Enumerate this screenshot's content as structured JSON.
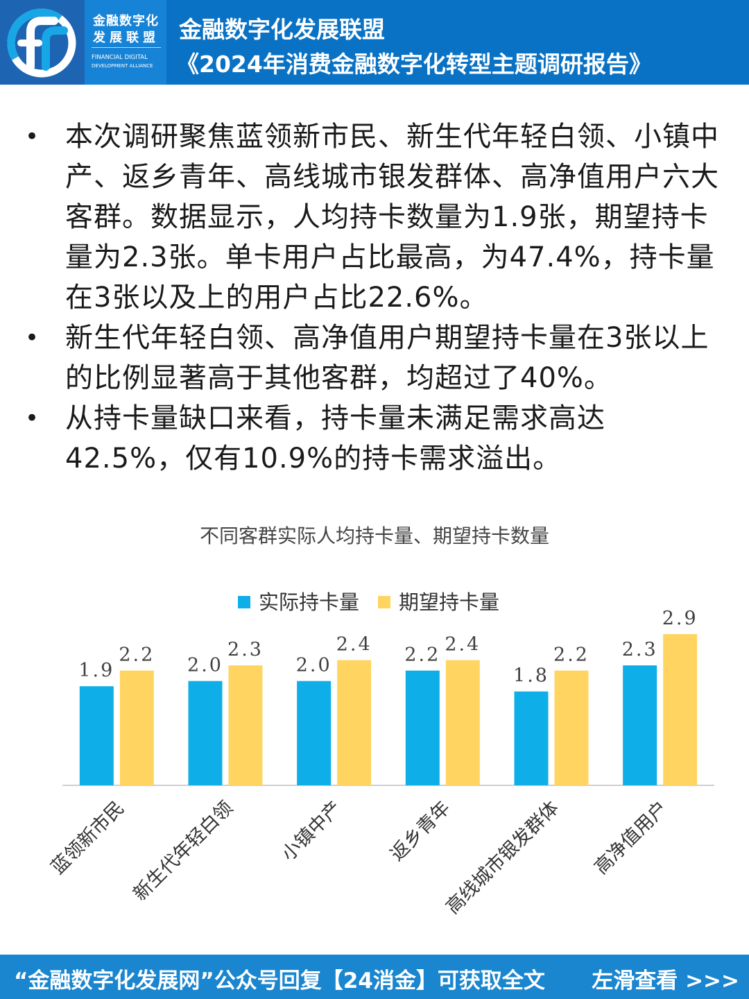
{
  "header": {
    "logo_cn_line1": "金融数字化",
    "logo_cn_line2": "发展联盟",
    "logo_en_line1": "FINANCIAL DIGITAL",
    "logo_en_line2": "DEVELOPMENT ALLIANCE",
    "title_line1": "金融数字化发展联盟",
    "title_line2": "《2024年消费金融数字化转型主题调研报告》"
  },
  "bullets": [
    "本次调研聚焦蓝领新市民、新生代年轻白领、小镇中产、返乡青年、高线城市银发群体、高净值用户六大客群。数据显示，人均持卡数量为1.9张，期望持卡量为2.3张。单卡用户占比最高，为47.4%，持卡量在3张以及上的用户占比22.6%。",
    "新生代年轻白领、高净值用户期望持卡量在3张以上的比例显著高于其他客群，均超过了40%。",
    "从持卡量缺口来看，持卡量未满足需求高达42.5%，仅有10.9%的持卡需求溢出。"
  ],
  "bullet_symbol": "•",
  "chart_data": {
    "type": "bar",
    "title": "不同客群实际人均持卡量、期望持卡数量",
    "categories": [
      "蓝领新市民",
      "新生代年轻白领",
      "小镇中产",
      "返乡青年",
      "高线城市银发群体",
      "高净值用户"
    ],
    "series": [
      {
        "name": "实际持卡量",
        "values": [
          1.9,
          2.0,
          2.0,
          2.2,
          1.8,
          2.3
        ],
        "color": "#0eaee8"
      },
      {
        "name": "期望持卡量",
        "values": [
          2.2,
          2.3,
          2.4,
          2.4,
          2.2,
          2.9
        ],
        "color": "#ffd460"
      }
    ],
    "data_labels": [
      [
        "1.9",
        "2.0",
        "2.0",
        "2.2",
        "1.8",
        "2.3"
      ],
      [
        "2.2",
        "2.3",
        "2.4",
        "2.4",
        "2.2",
        "2.9"
      ]
    ],
    "legend_position": "top",
    "grid": false,
    "ylim": [
      0,
      3.2
    ]
  },
  "footer": {
    "text": "“金融数字化发展网”公众号回复【24消金】可获取全文",
    "swipe": "左滑查看 >>>"
  },
  "colors": {
    "header_bg": "#0a72c4",
    "footer_bg": "#1a86cf",
    "actual": "#0eaee8",
    "expected": "#ffd460"
  }
}
